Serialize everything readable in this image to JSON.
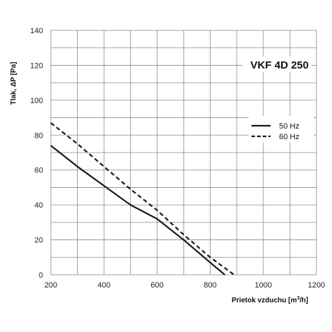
{
  "chart_data": {
    "type": "line",
    "title": "VKF 4D 250",
    "xlabel_main": "Prietok vzduchu [m",
    "xlabel_sup": "3",
    "xlabel_end": "/h]",
    "ylabel": "Tlak, ΔP [Pa]",
    "xlim": [
      200,
      1200
    ],
    "ylim": [
      0,
      140
    ],
    "x_ticks": [
      200,
      400,
      600,
      800,
      1000,
      1200
    ],
    "y_ticks": [
      0,
      20,
      40,
      60,
      80,
      100,
      120,
      140
    ],
    "x_tick_labels": [
      "200",
      "400",
      "600",
      "800",
      "1000",
      "1200"
    ],
    "y_tick_labels": [
      "0",
      "20",
      "40",
      "60",
      "80",
      "100",
      "120",
      "140"
    ],
    "x_minor_step": 100,
    "y_minor_step": 10,
    "grid": true,
    "legend_position": "right, upper-middle",
    "series": [
      {
        "name": "50 Hz",
        "style": "solid",
        "color": "#1a1a1a",
        "x": [
          200,
          300,
          400,
          500,
          600,
          700,
          800,
          855
        ],
        "y": [
          74,
          62,
          51,
          40,
          32,
          20,
          7,
          0
        ]
      },
      {
        "name": "60 Hz",
        "style": "dashed",
        "color": "#1a1a1a",
        "x": [
          200,
          300,
          400,
          500,
          600,
          700,
          800,
          890
        ],
        "y": [
          87,
          75,
          62,
          49,
          37,
          23,
          10,
          0
        ]
      }
    ]
  }
}
